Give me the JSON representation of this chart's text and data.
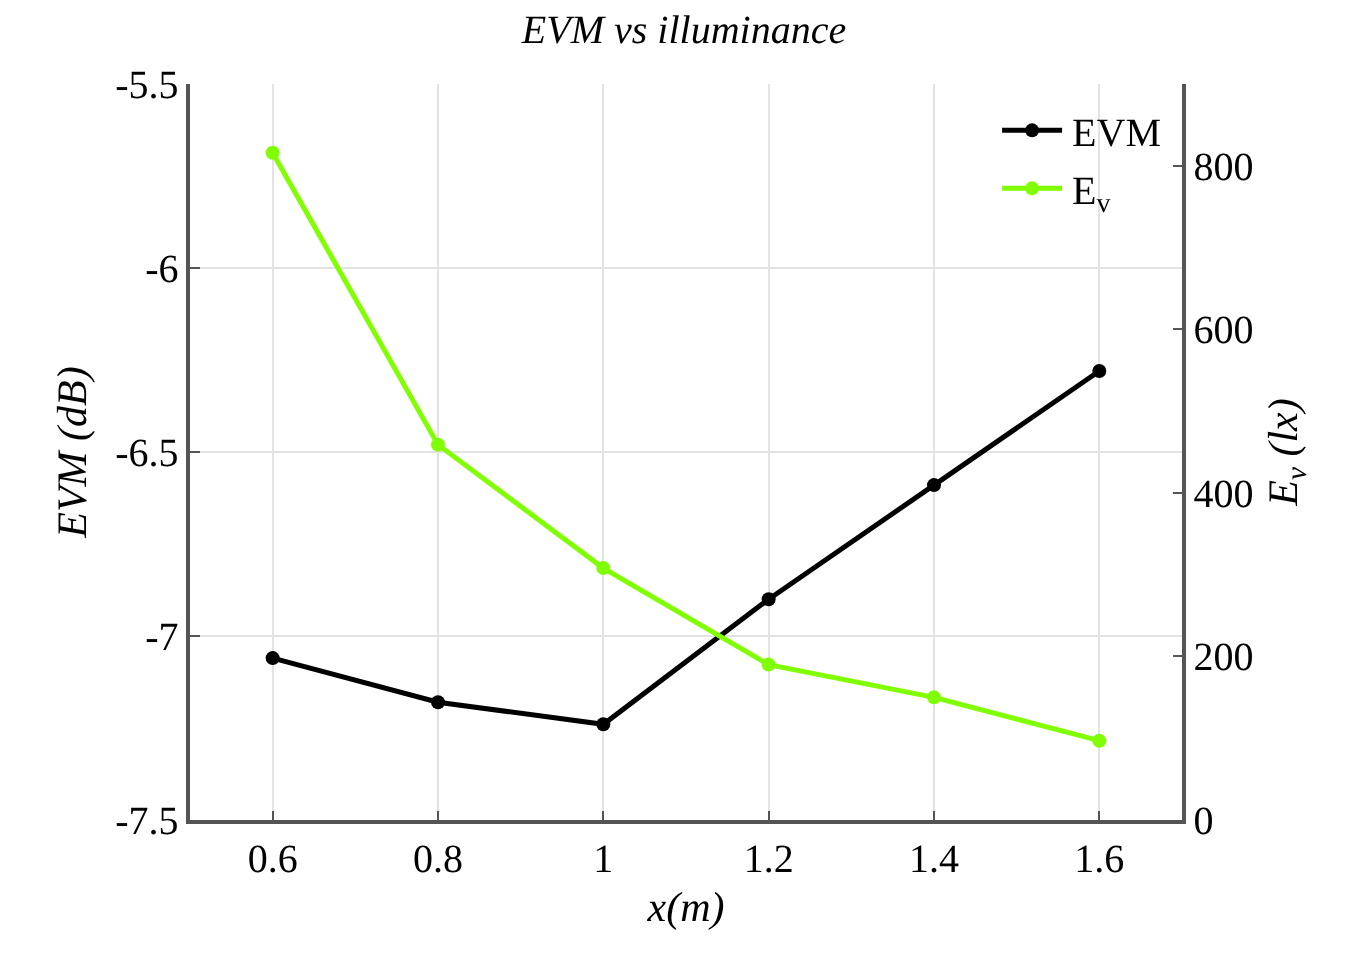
{
  "chart_data": {
    "type": "line",
    "title": "EVM vs illuminance",
    "xlabel": "x(m)",
    "ylabel": "EVM (dB)",
    "y2label": "E$_{v}$ (lx)",
    "x": [
      0.6,
      0.8,
      1.0,
      1.2,
      1.4,
      1.6
    ],
    "series": [
      {
        "name": "EVM",
        "color": "#000000",
        "values": [
          -7.06,
          -7.18,
          -7.24,
          -6.9,
          -6.59,
          -6.28
        ]
      },
      {
        "name": "E$_{v}$",
        "color": "#80ff00",
        "axis": "y2",
        "values": [
          816,
          459,
          308,
          190,
          150,
          97
        ]
      }
    ],
    "xlim": [
      0.5,
      1.7
    ],
    "xticks": [
      0.6,
      0.8,
      1,
      1.2,
      1.4,
      1.6
    ],
    "ylim": [
      -7.5,
      -5.5
    ],
    "yticks": [
      -7.5,
      -7,
      -6.5,
      -6,
      -5.5
    ],
    "y2lim": [
      0,
      900
    ],
    "y2ticks": [
      0,
      200,
      400,
      600,
      800
    ],
    "grid": true,
    "legend": "top right",
    "marker": "circle",
    "line_style": "solid"
  }
}
